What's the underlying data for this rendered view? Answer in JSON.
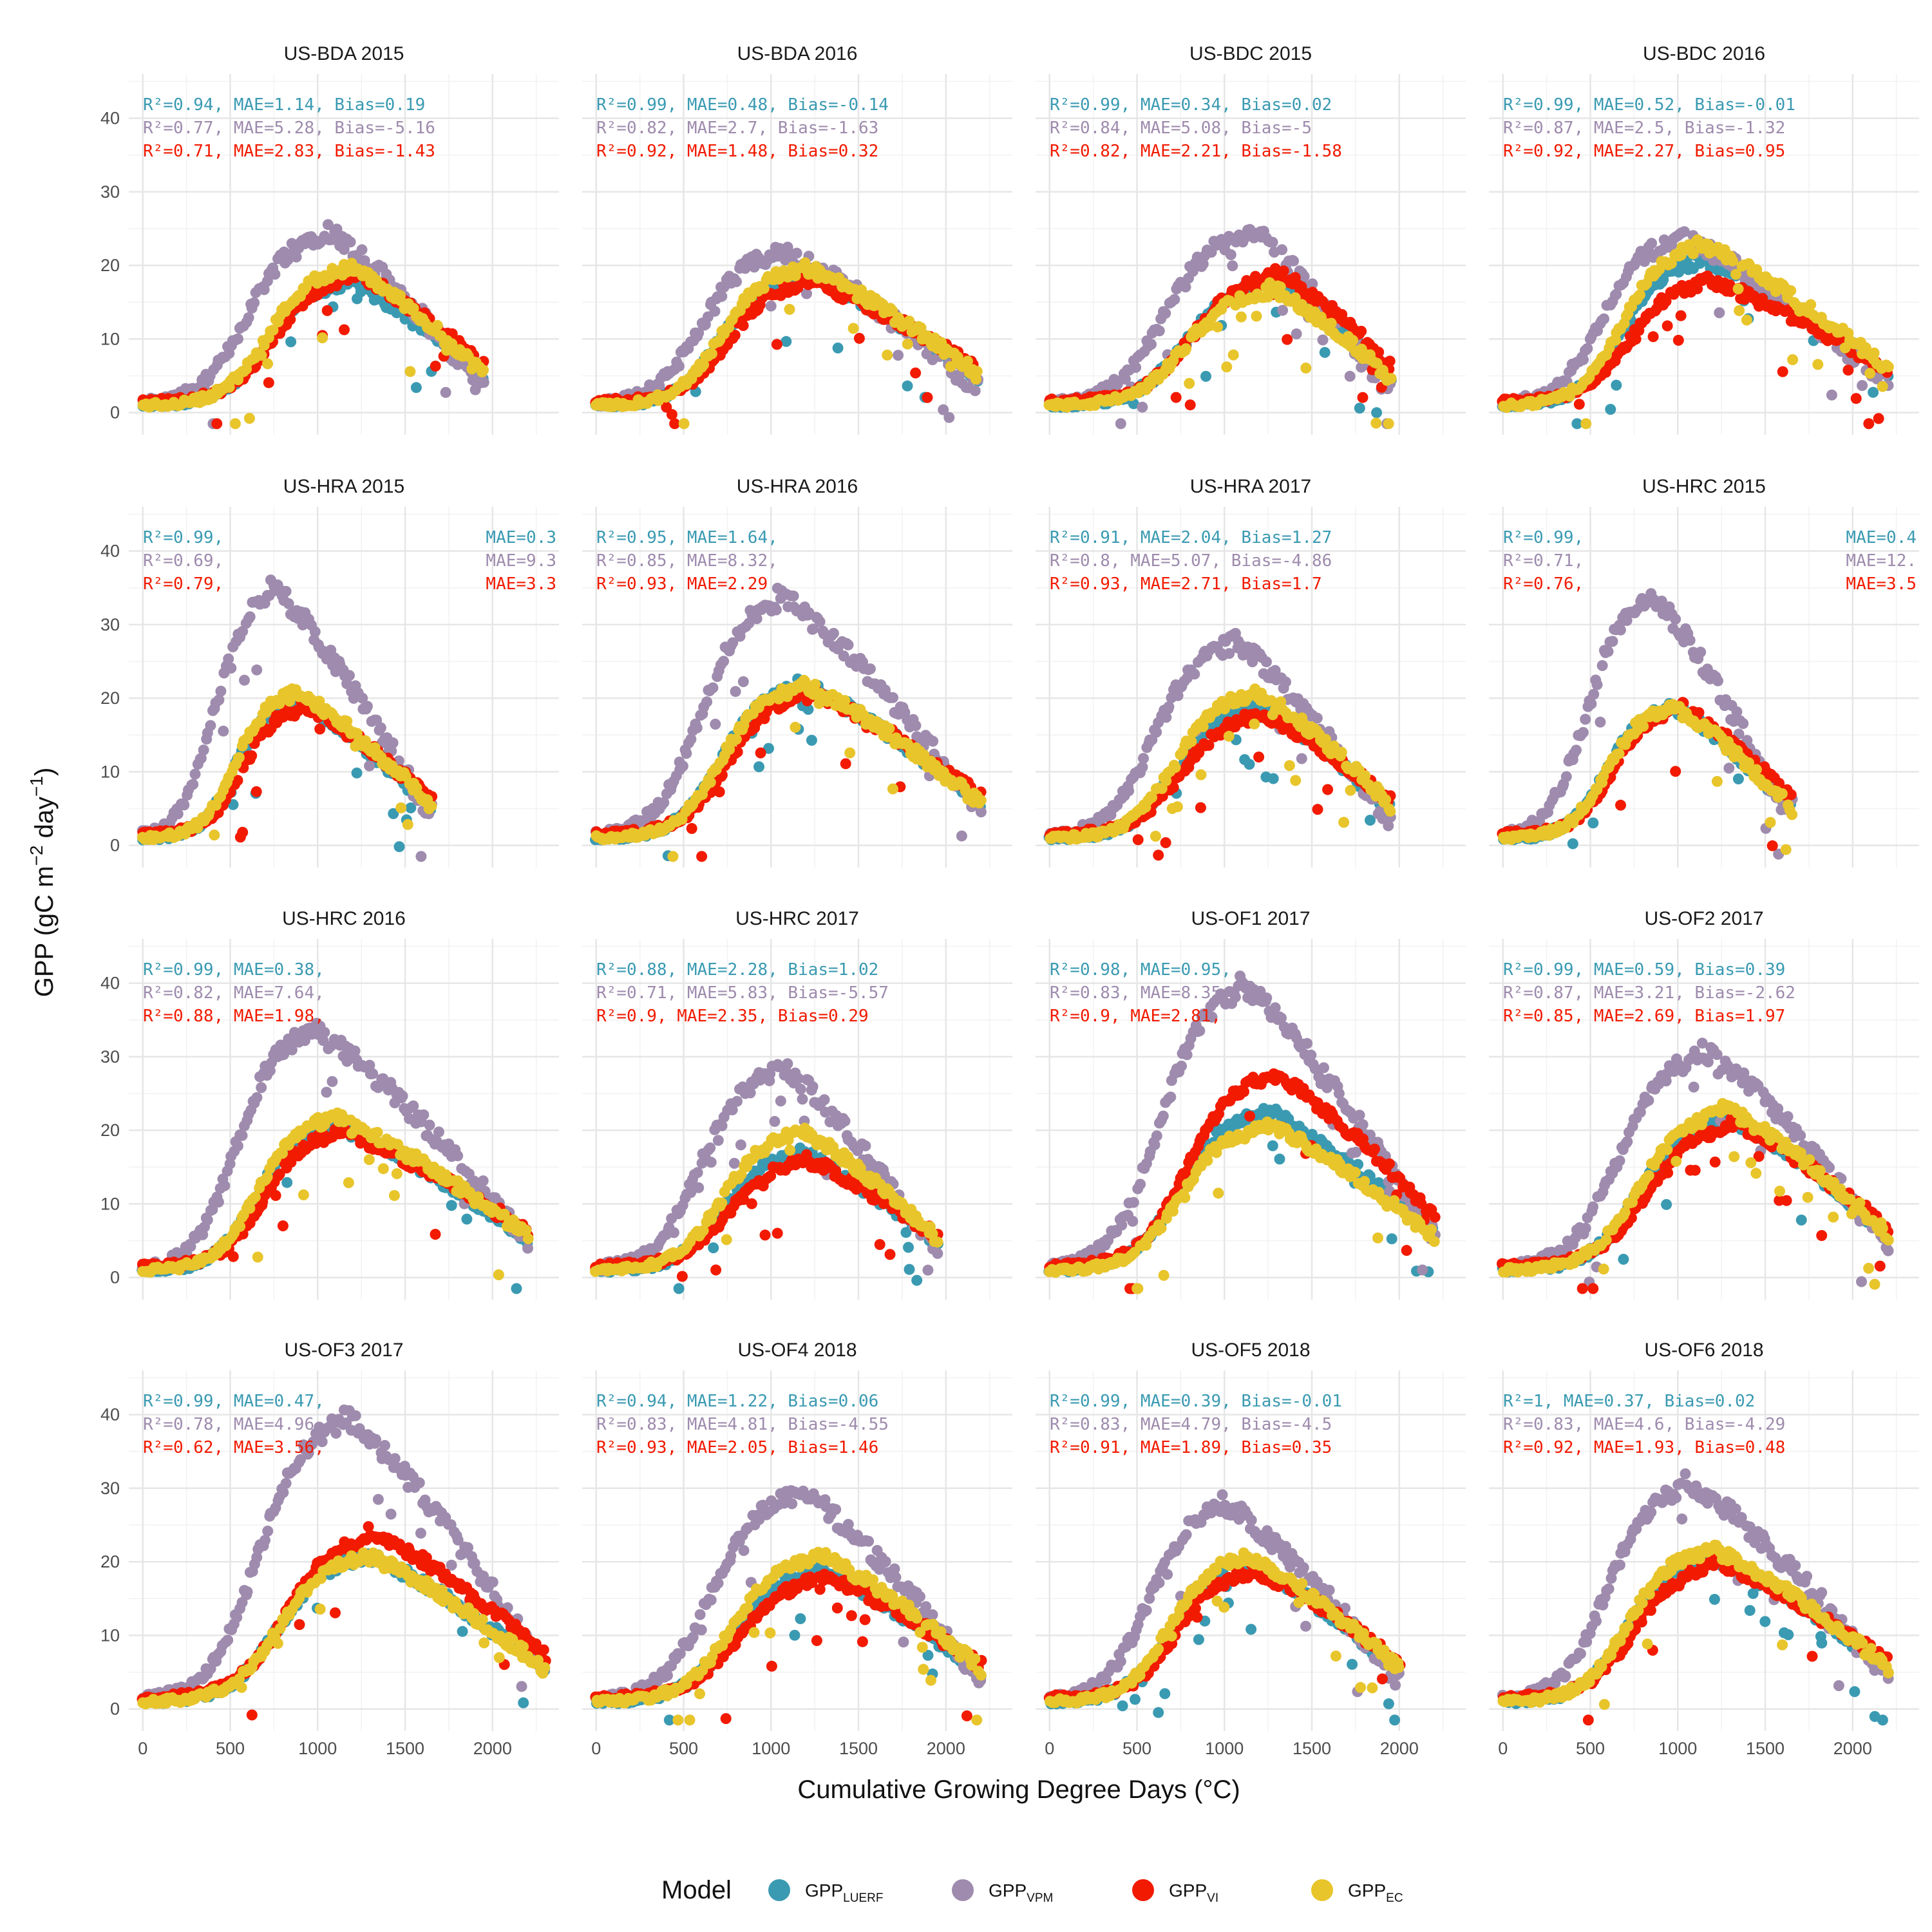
{
  "chart_data": {
    "type": "scatter",
    "facets": [
      "US-BDA 2015",
      "US-BDA 2016",
      "US-BDC 2015",
      "US-BDC 2016",
      "US-HRA 2015",
      "US-HRA 2016",
      "US-HRA 2017",
      "US-HRC 2015",
      "US-HRC 2016",
      "US-HRC 2017",
      "US-OF1 2017",
      "US-OF2 2017",
      "US-OF3 2017",
      "US-OF4 2018",
      "US-OF5 2018",
      "US-OF6 2018"
    ],
    "xlabel": "Cumulative Growing Degree Days (°C)",
    "ylabel_main": "GPP (gC m",
    "ylabel_sup1": "−2",
    "ylabel_mid": " day",
    "ylabel_sup2": "−1",
    "ylabel_end": ")",
    "xlim": [
      -80,
      2380
    ],
    "ylim": [
      -3,
      46
    ],
    "x_ticks": [
      0,
      500,
      1000,
      1500,
      2000
    ],
    "y_ticks": [
      0,
      10,
      20,
      30,
      40
    ],
    "grid": true,
    "legend": {
      "title": "Model",
      "position": "bottom",
      "entries": [
        {
          "main": "GPP",
          "sub": "LUERF",
          "color": "#3A9AB2"
        },
        {
          "main": "GPP",
          "sub": "VPM",
          "color": "#9E8BAD"
        },
        {
          "main": "GPP",
          "sub": "VI",
          "color": "#F21A00"
        },
        {
          "main": "GPP",
          "sub": "EC",
          "color": "#E8C52B"
        }
      ]
    },
    "metric_colors": [
      "#3A9AB2",
      "#9E8BAD",
      "#F21A00"
    ],
    "series_colors": {
      "LUERF": "#3A9AB2",
      "VPM": "#9E8BAD",
      "VI": "#F21A00",
      "EC": "#E8C52B"
    },
    "panels": [
      {
        "maxGDD": 1950,
        "peakGDD": 1150,
        "ecPeak": 20,
        "vpmPeak": 25,
        "viPeak": 19,
        "luerfPeak": 18,
        "annotations": [
          "R²=0.94, MAE=1.14, Bias=0.19",
          "R²=0.77, MAE=5.28, Bias=-5.16",
          "R²=0.71, MAE=2.83, Bias=-1.43"
        ]
      },
      {
        "maxGDD": 2180,
        "peakGDD": 1150,
        "ecPeak": 20,
        "vpmPeak": 22,
        "viPeak": 18,
        "luerfPeak": 19,
        "annotations": [
          "R²=0.99, MAE=0.48, Bias=-0.14",
          "R²=0.82, MAE=2.7, Bias=-1.63",
          "R²=0.92, MAE=1.48, Bias=0.32"
        ]
      },
      {
        "maxGDD": 1950,
        "peakGDD": 1250,
        "ecPeak": 17,
        "vpmPeak": 25,
        "viPeak": 19,
        "luerfPeak": 18,
        "annotations": [
          "R²=0.99, MAE=0.34, Bias=0.02",
          "R²=0.84, MAE=5.08, Bias=-5",
          "R²=0.82, MAE=2.21, Bias=-1.58"
        ]
      },
      {
        "maxGDD": 2200,
        "peakGDD": 1100,
        "ecPeak": 23,
        "vpmPeak": 24,
        "viPeak": 18,
        "luerfPeak": 21,
        "annotations": [
          "R²=0.99, MAE=0.52, Bias=-0.01",
          "R²=0.87, MAE=2.5, Bias=-1.32",
          "R²=0.92, MAE=2.27, Bias=0.95"
        ]
      },
      {
        "maxGDD": 1650,
        "peakGDD": 850,
        "ecPeak": 21,
        "vpmPeak": 35,
        "viPeak": 19,
        "luerfPeak": 20,
        "annotations": [
          "R²=0.99,",
          "R²=0.69,",
          "R²=0.79,"
        ],
        "annotations_right": [
          "MAE=0.3",
          "MAE=9.3",
          "MAE=3.3"
        ]
      },
      {
        "maxGDD": 2200,
        "peakGDD": 1150,
        "ecPeak": 22,
        "vpmPeak": 34,
        "viPeak": 21,
        "luerfPeak": 22,
        "annotations": [
          "R²=0.95, MAE=1.64,",
          "R²=0.85, MAE=8.32,",
          "R²=0.93, MAE=2.29"
        ]
      },
      {
        "maxGDD": 1950,
        "peakGDD": 1150,
        "ecPeak": 21,
        "vpmPeak": 28,
        "viPeak": 18,
        "luerfPeak": 19,
        "annotations": [
          "R²=0.91, MAE=2.04, Bias=1.27",
          "R²=0.8, MAE=5.07, Bias=-4.86",
          "R²=0.93, MAE=2.71, Bias=1.7"
        ]
      },
      {
        "maxGDD": 1650,
        "peakGDD": 950,
        "ecPeak": 19,
        "vpmPeak": 34,
        "viPeak": 19,
        "luerfPeak": 19,
        "annotations": [
          "R²=0.99,",
          "R²=0.71,",
          "R²=0.76,"
        ],
        "annotations_right": [
          "MAE=0.4",
          "MAE=12.",
          "MAE=3.5"
        ]
      },
      {
        "maxGDD": 2200,
        "peakGDD": 1050,
        "ecPeak": 22,
        "vpmPeak": 34,
        "viPeak": 20,
        "luerfPeak": 21,
        "annotations": [
          "R²=0.99, MAE=0.38,",
          "R²=0.82, MAE=7.64,",
          "R²=0.88, MAE=1.98,"
        ]
      },
      {
        "maxGDD": 1950,
        "peakGDD": 1150,
        "ecPeak": 20,
        "vpmPeak": 29,
        "viPeak": 16,
        "luerfPeak": 17,
        "annotations": [
          "R²=0.88, MAE=2.28, Bias=1.02",
          "R²=0.71, MAE=5.83, Bias=-5.57",
          "R²=0.9, MAE=2.35, Bias=0.29"
        ]
      },
      {
        "maxGDD": 2200,
        "peakGDD": 1200,
        "ecPeak": 21,
        "vpmPeak": 40,
        "viPeak": 28,
        "luerfPeak": 23,
        "annotations": [
          "R²=0.98, MAE=0.95,",
          "R²=0.83, MAE=8.35,",
          "R²=0.9, MAE=2.81,"
        ]
      },
      {
        "maxGDD": 2200,
        "peakGDD": 1250,
        "ecPeak": 23,
        "vpmPeak": 31,
        "viPeak": 21,
        "luerfPeak": 22,
        "annotations": [
          "R²=0.99, MAE=0.59, Bias=0.39",
          "R²=0.87, MAE=3.21, Bias=-2.62",
          "R²=0.85, MAE=2.69, Bias=1.97"
        ]
      },
      {
        "maxGDD": 2300,
        "peakGDD": 1250,
        "ecPeak": 21,
        "vpmPeak": 40,
        "viPeak": 24,
        "luerfPeak": 21,
        "annotations": [
          "R²=0.99, MAE=0.47,",
          "R²=0.78, MAE=4.96,",
          "R²=0.62, MAE=3.56,"
        ]
      },
      {
        "maxGDD": 2200,
        "peakGDD": 1250,
        "ecPeak": 21,
        "vpmPeak": 30,
        "viPeak": 18,
        "luerfPeak": 19,
        "annotations": [
          "R²=0.94, MAE=1.22, Bias=0.06",
          "R²=0.83, MAE=4.81, Bias=-4.55",
          "R²=0.93, MAE=2.05, Bias=1.46"
        ]
      },
      {
        "maxGDD": 2000,
        "peakGDD": 1100,
        "ecPeak": 21,
        "vpmPeak": 28,
        "viPeak": 19,
        "luerfPeak": 20,
        "annotations": [
          "R²=0.99, MAE=0.39, Bias=-0.01",
          "R²=0.83, MAE=4.79, Bias=-4.5",
          "R²=0.91, MAE=1.89, Bias=0.35"
        ]
      },
      {
        "maxGDD": 2200,
        "peakGDD": 1150,
        "ecPeak": 22,
        "vpmPeak": 31,
        "viPeak": 20,
        "luerfPeak": 21,
        "annotations": [
          "R²=1, MAE=0.37, Bias=0.02",
          "R²=0.83, MAE=4.6, Bias=-4.29",
          "R²=0.92, MAE=1.93, Bias=0.48"
        ]
      }
    ]
  }
}
